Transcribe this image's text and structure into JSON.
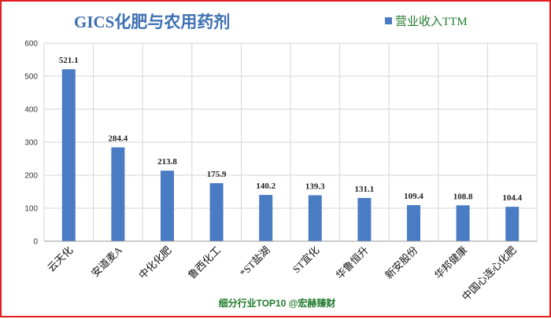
{
  "chart_data": {
    "type": "bar",
    "title": "GICS化肥与农用药剂",
    "legend": {
      "label": "营业收入TTM",
      "placement": "top-right"
    },
    "categories": [
      "云天化",
      "安道麦A",
      "中化化肥",
      "鲁西化工",
      "*ST盐湖",
      "ST宜化",
      "华鲁恒升",
      "新安股份",
      "华邦健康",
      "中国心连心化肥"
    ],
    "series": [
      {
        "name": "营业收入TTM",
        "values": [
          521.1,
          284.4,
          213.8,
          175.9,
          140.2,
          139.3,
          131.1,
          109.4,
          108.8,
          104.4
        ]
      }
    ],
    "data_labels": [
      "521.1",
      "284.4",
      "213.8",
      "175.9",
      "140.2",
      "139.3",
      "131.1",
      "109.4",
      "108.8",
      "104.4"
    ],
    "ylim": [
      0,
      600
    ],
    "yticks": [
      "0",
      "100",
      "200",
      "300",
      "400",
      "500",
      "600"
    ],
    "grid": true,
    "bar_color": "#4a7cc4",
    "footer": "细分行业TOP10 @宏赫臻财"
  }
}
